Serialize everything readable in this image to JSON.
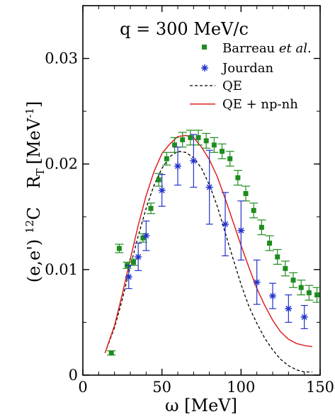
{
  "chart_data": {
    "type": "scatter",
    "annotation": "q = 300 MeV/c",
    "xlabel": "ω [MeV]",
    "ylabel": {
      "prefix": "(e,e')",
      "iso_mass": "12",
      "iso_elem": "C",
      "R": "R",
      "R_sub": "T",
      "unit_open": "[MeV",
      "unit_exp": "-1",
      "unit_close": "]"
    },
    "xlim": [
      0,
      150
    ],
    "ylim": [
      0,
      0.035
    ],
    "xticks": [
      0,
      50,
      100,
      150
    ],
    "xtick_labels": [
      "0",
      "50",
      "100",
      "150"
    ],
    "yticks": [
      0,
      0.01,
      0.02,
      0.03
    ],
    "ytick_labels": [
      "0",
      "0.01",
      "0.02",
      "0.03"
    ],
    "legend_position": "top-right",
    "legend": [
      {
        "key": "barreau",
        "text": "Barreau ",
        "text_italic": "et al.",
        "marker": "square",
        "color": "#1e8c1e"
      },
      {
        "key": "jourdan",
        "text": "Jourdan",
        "marker": "asterisk",
        "color": "#2233cc"
      },
      {
        "key": "qe",
        "text": "QE",
        "marker": "dashed-line",
        "color": "#000000"
      },
      {
        "key": "qe_npnh",
        "text": "QE + np-nh",
        "marker": "solid-line",
        "color": "#e02020"
      }
    ],
    "series": [
      {
        "key": "barreau",
        "color": "#1e8c1e",
        "points": [
          {
            "x": 18,
            "y": 0.0021,
            "err": 0.0002
          },
          {
            "x": 23,
            "y": 0.012,
            "err": 0.0004
          },
          {
            "x": 28,
            "y": 0.0104,
            "err": 0.0003
          },
          {
            "x": 32,
            "y": 0.0107,
            "err": 0.0003
          },
          {
            "x": 38,
            "y": 0.013,
            "err": 0.0004
          },
          {
            "x": 43,
            "y": 0.0158,
            "err": 0.0005
          },
          {
            "x": 48,
            "y": 0.0185,
            "err": 0.0006
          },
          {
            "x": 53,
            "y": 0.0205,
            "err": 0.0006
          },
          {
            "x": 58,
            "y": 0.0218,
            "err": 0.0007
          },
          {
            "x": 63,
            "y": 0.0223,
            "err": 0.0007
          },
          {
            "x": 68,
            "y": 0.0225,
            "err": 0.0007
          },
          {
            "x": 73,
            "y": 0.0225,
            "err": 0.0007
          },
          {
            "x": 78,
            "y": 0.0222,
            "err": 0.0007
          },
          {
            "x": 83,
            "y": 0.0218,
            "err": 0.0007
          },
          {
            "x": 88,
            "y": 0.0212,
            "err": 0.0007
          },
          {
            "x": 93,
            "y": 0.0205,
            "err": 0.0007
          },
          {
            "x": 98,
            "y": 0.0187,
            "err": 0.0007
          },
          {
            "x": 103,
            "y": 0.0172,
            "err": 0.0007
          },
          {
            "x": 108,
            "y": 0.0156,
            "err": 0.0007
          },
          {
            "x": 113,
            "y": 0.014,
            "err": 0.0007
          },
          {
            "x": 118,
            "y": 0.0125,
            "err": 0.0007
          },
          {
            "x": 123,
            "y": 0.0112,
            "err": 0.0007
          },
          {
            "x": 128,
            "y": 0.0101,
            "err": 0.0007
          },
          {
            "x": 133,
            "y": 0.009,
            "err": 0.0007
          },
          {
            "x": 138,
            "y": 0.0083,
            "err": 0.0007
          },
          {
            "x": 143,
            "y": 0.0078,
            "err": 0.0007
          },
          {
            "x": 148,
            "y": 0.0076,
            "err": 0.0007
          },
          {
            "x": 153,
            "y": 0.0079,
            "err": 0.0007
          },
          {
            "x": 158,
            "y": 0.008,
            "err": 0.0007
          }
        ]
      },
      {
        "key": "jourdan",
        "color": "#2233cc",
        "points": [
          {
            "x": 29,
            "y": 0.0093,
            "err": 0.0011
          },
          {
            "x": 35,
            "y": 0.0112,
            "err": 0.0013
          },
          {
            "x": 40,
            "y": 0.0132,
            "err": 0.0014
          },
          {
            "x": 50,
            "y": 0.0175,
            "err": 0.0015
          },
          {
            "x": 60,
            "y": 0.0198,
            "err": 0.0018
          },
          {
            "x": 70,
            "y": 0.0203,
            "err": 0.0025
          },
          {
            "x": 80,
            "y": 0.0178,
            "err": 0.0035
          },
          {
            "x": 90,
            "y": 0.0143,
            "err": 0.003
          },
          {
            "x": 100,
            "y": 0.0137,
            "err": 0.0028
          },
          {
            "x": 110,
            "y": 0.0088,
            "err": 0.0021
          },
          {
            "x": 120,
            "y": 0.0075,
            "err": 0.0012
          },
          {
            "x": 130,
            "y": 0.0063,
            "err": 0.0013
          },
          {
            "x": 140,
            "y": 0.0055,
            "err": 0.0011
          }
        ]
      }
    ],
    "curves": [
      {
        "key": "qe",
        "color": "#000000",
        "style": "dashed",
        "points": [
          [
            14,
            0.0021
          ],
          [
            20,
            0.0045
          ],
          [
            25,
            0.0072
          ],
          [
            30,
            0.0103
          ],
          [
            35,
            0.0132
          ],
          [
            40,
            0.0158
          ],
          [
            45,
            0.018
          ],
          [
            50,
            0.0196
          ],
          [
            55,
            0.0207
          ],
          [
            60,
            0.0212
          ],
          [
            65,
            0.0211
          ],
          [
            70,
            0.0206
          ],
          [
            75,
            0.0196
          ],
          [
            80,
            0.018
          ],
          [
            85,
            0.016
          ],
          [
            90,
            0.0135
          ],
          [
            95,
            0.011
          ],
          [
            100,
            0.0086
          ],
          [
            105,
            0.0065
          ],
          [
            110,
            0.0049
          ],
          [
            115,
            0.0035
          ],
          [
            120,
            0.0024
          ],
          [
            125,
            0.0015
          ],
          [
            130,
            0.0009
          ],
          [
            135,
            0.0005
          ],
          [
            140,
            0.0003
          ],
          [
            145,
            0.0003
          ]
        ]
      },
      {
        "key": "qe_npnh",
        "color": "#e02020",
        "style": "solid",
        "points": [
          [
            14,
            0.0021
          ],
          [
            20,
            0.0047
          ],
          [
            25,
            0.0077
          ],
          [
            30,
            0.011
          ],
          [
            35,
            0.0142
          ],
          [
            40,
            0.017
          ],
          [
            45,
            0.0193
          ],
          [
            50,
            0.021
          ],
          [
            55,
            0.0219
          ],
          [
            60,
            0.0226
          ],
          [
            65,
            0.0227
          ],
          [
            70,
            0.0225
          ],
          [
            75,
            0.0216
          ],
          [
            80,
            0.0204
          ],
          [
            85,
            0.0188
          ],
          [
            90,
            0.0167
          ],
          [
            95,
            0.0145
          ],
          [
            100,
            0.0123
          ],
          [
            105,
            0.0102
          ],
          [
            110,
            0.0082
          ],
          [
            115,
            0.0066
          ],
          [
            120,
            0.0052
          ],
          [
            125,
            0.0041
          ],
          [
            130,
            0.0034
          ],
          [
            135,
            0.003
          ],
          [
            140,
            0.0028
          ],
          [
            145,
            0.0027
          ]
        ]
      }
    ]
  }
}
